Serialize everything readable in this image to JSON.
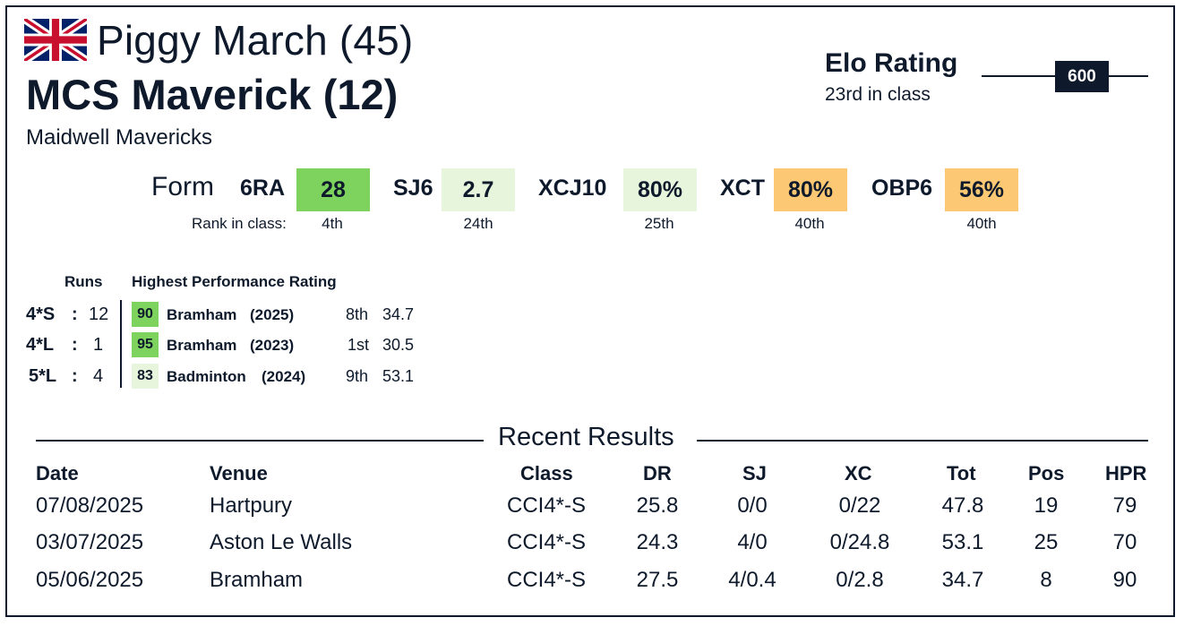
{
  "rider": {
    "name": "Piggy March (45)",
    "flag": "united-kingdom-flag"
  },
  "horse": {
    "name": "MCS Maverick (12)"
  },
  "owner": "Maidwell Mavericks",
  "elo": {
    "title": "Elo Rating",
    "rank": "23rd in class",
    "value": "600"
  },
  "form": {
    "label": "Form",
    "rank_label": "Rank in class:",
    "metrics": [
      {
        "label": "6RA",
        "value": "28",
        "rank": "4th",
        "color": "#7ed35e"
      },
      {
        "label": "SJ6",
        "value": "2.7",
        "rank": "24th",
        "color": "#e6f5dc"
      },
      {
        "label": "XCJ10",
        "value": "80%",
        "rank": "25th",
        "color": "#e6f5dc"
      },
      {
        "label": "XCT",
        "value": "80%",
        "rank": "40th",
        "color": "#fcc873"
      },
      {
        "label": "OBP6",
        "value": "56%",
        "rank": "40th",
        "color": "#fcc873"
      }
    ]
  },
  "hpr": {
    "runs_header": "Runs",
    "hpr_header": "Highest Performance Rating",
    "rows": [
      {
        "class": "4*S",
        "colon": ":",
        "runs": "12",
        "rating": "90",
        "rating_color": "#7ed35e",
        "venue": "Bramham",
        "year": "(2025)",
        "pos": "8th",
        "score": "34.7"
      },
      {
        "class": "4*L",
        "colon": ":",
        "runs": "1",
        "rating": "95",
        "rating_color": "#7ed35e",
        "venue": "Bramham",
        "year": "(2023)",
        "pos": "1st",
        "score": "30.5"
      },
      {
        "class": "5*L",
        "colon": ":",
        "runs": "4",
        "rating": "83",
        "rating_color": "#e6f5dc",
        "venue": "Badminton",
        "year": "(2024)",
        "pos": "9th",
        "score": "53.1"
      }
    ]
  },
  "recent": {
    "title": "Recent Results",
    "headers": [
      "Date",
      "Venue",
      "Class",
      "DR",
      "SJ",
      "XC",
      "Tot",
      "Pos",
      "HPR"
    ],
    "rows": [
      [
        "07/08/2025",
        "Hartpury",
        "CCI4*-S",
        "25.8",
        "0/0",
        "0/22",
        "47.8",
        "19",
        "79"
      ],
      [
        "03/07/2025",
        "Aston Le Walls",
        "CCI4*-S",
        "24.3",
        "4/0",
        "0/24.8",
        "53.1",
        "25",
        "70"
      ],
      [
        "05/06/2025",
        "Bramham",
        "CCI4*-S",
        "27.5",
        "4/0.4",
        "0/2.8",
        "34.7",
        "8",
        "90"
      ]
    ]
  }
}
